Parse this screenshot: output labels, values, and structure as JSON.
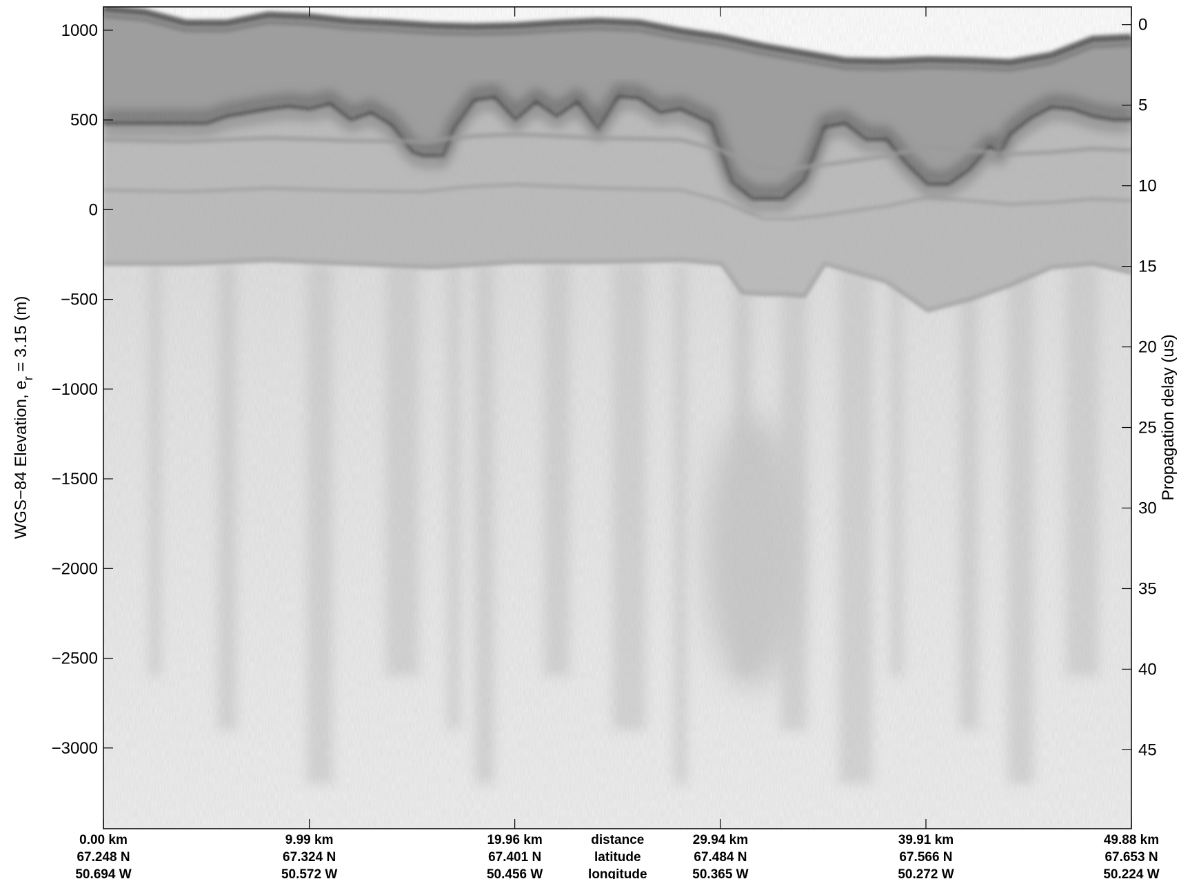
{
  "chart_data": {
    "type": "heatmap",
    "title": "",
    "colormap": "gray",
    "left_axis": {
      "label_main": "WGS−84 Elevation, e",
      "label_sub": "r",
      "label_tail": " = 3.15 (m)",
      "range": [
        -3450,
        1130
      ],
      "ticks": [
        1000,
        500,
        0,
        -500,
        -1000,
        -1500,
        -2000,
        -2500,
        -3000
      ],
      "tick_labels": [
        "1000",
        "500",
        "0",
        "−500",
        "−1000",
        "−1500",
        "−2000",
        "−2500",
        "−3000"
      ]
    },
    "right_axis": {
      "label": "Propagation delay (us)",
      "range": [
        -1.1,
        49.9
      ],
      "ticks": [
        0,
        5,
        10,
        15,
        20,
        25,
        30,
        35,
        40,
        45
      ],
      "tick_labels": [
        "0",
        "5",
        "10",
        "15",
        "20",
        "25",
        "30",
        "35",
        "40",
        "45"
      ]
    },
    "x_axis": {
      "range_km": [
        0,
        49.88
      ],
      "ticks_km": [
        0,
        9.99,
        19.96,
        29.94,
        39.91,
        49.88
      ],
      "distance_labels": [
        "0.00 km",
        "9.99 km",
        "19.96 km",
        "29.94 km",
        "39.91 km",
        "49.88 km"
      ],
      "latitude_labels": [
        "67.248 N",
        "67.324 N",
        "67.401 N",
        "67.484 N",
        "67.566 N",
        "67.653 N"
      ],
      "longitude_labels": [
        "50.694 W",
        "50.572 W",
        "50.456 W",
        "50.365 W",
        "50.272 W",
        "50.224 W"
      ],
      "center_labels": [
        "distance",
        "latitude",
        "longitude"
      ],
      "center_label_km": 24.95
    },
    "surface_profile": {
      "x_km": [
        0,
        2,
        4,
        6,
        8,
        10,
        12,
        14,
        16,
        18,
        20,
        22,
        24,
        26,
        28,
        30,
        32,
        34,
        36,
        38,
        40,
        42,
        44,
        46,
        48,
        49.88
      ],
      "elevation_m": [
        1120,
        1100,
        1040,
        1040,
        1085,
        1075,
        1050,
        1040,
        1025,
        1020,
        1025,
        1040,
        1050,
        1040,
        995,
        960,
        910,
        870,
        830,
        825,
        835,
        830,
        820,
        860,
        950,
        960
      ]
    },
    "bed_profile": {
      "x_km": [
        0,
        3,
        5,
        6,
        8,
        9,
        10,
        11,
        12,
        13,
        14,
        15,
        15.5,
        16.5,
        17,
        18,
        19,
        20,
        21,
        22,
        23,
        24,
        25,
        26,
        27,
        28,
        29.5,
        30.5,
        31.5,
        33,
        34,
        35,
        36,
        37,
        38,
        39,
        40,
        41,
        42,
        43,
        43.5,
        44,
        45,
        46,
        47,
        48,
        49,
        49.88
      ],
      "elevation_m": [
        480,
        480,
        480,
        520,
        560,
        575,
        560,
        590,
        500,
        540,
        470,
        320,
        300,
        300,
        450,
        610,
        625,
        500,
        600,
        520,
        600,
        450,
        630,
        620,
        540,
        560,
        480,
        150,
        60,
        60,
        160,
        460,
        480,
        390,
        390,
        250,
        140,
        140,
        220,
        350,
        310,
        420,
        510,
        570,
        560,
        520,
        500,
        500
      ]
    },
    "internal_layer_profile": {
      "x_km": [
        0,
        4,
        8,
        12,
        15.5,
        17,
        18,
        20,
        24,
        28,
        30,
        32,
        33.5,
        35,
        38,
        40,
        42,
        44,
        46,
        48,
        49.88
      ],
      "elevation_m": [
        390,
        380,
        400,
        385,
        380,
        400,
        410,
        420,
        400,
        390,
        330,
        230,
        230,
        250,
        300,
        350,
        330,
        310,
        320,
        340,
        330
      ]
    },
    "basal_layer_profile": {
      "x_km": [
        0,
        4,
        8,
        12,
        16,
        20,
        24,
        28,
        30,
        31,
        32,
        33,
        34,
        35,
        38,
        40,
        42,
        44,
        46,
        48,
        49.88
      ],
      "elevation_m": [
        -300,
        -300,
        -280,
        -300,
        -320,
        -290,
        -290,
        -280,
        -300,
        -460,
        -470,
        -470,
        -480,
        -300,
        -400,
        -560,
        -500,
        -420,
        -320,
        -300,
        -350
      ]
    },
    "grid": false
  }
}
